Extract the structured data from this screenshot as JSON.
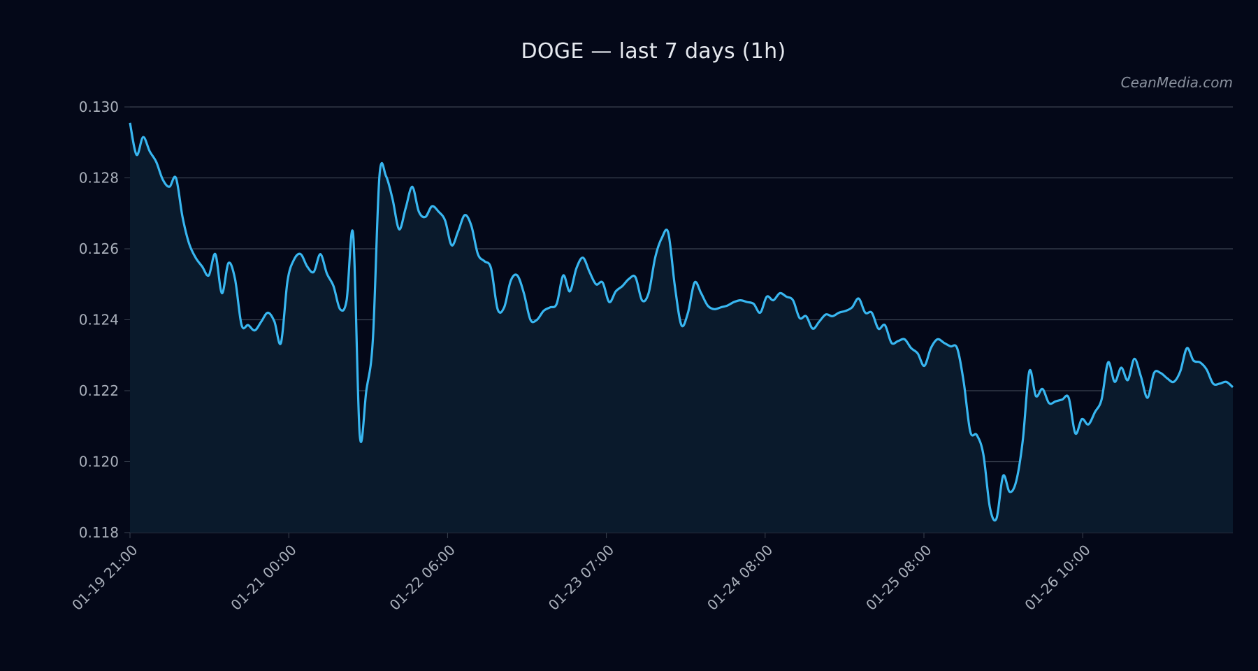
{
  "header": {
    "title": "DOGE — last 7 days (1h)",
    "watermark": "CeanMedia.com"
  },
  "colors": {
    "background": "#040818",
    "line": "#38b6f0",
    "area_fill": "#0a1a2c",
    "grid": "#3a4250",
    "tick_text": "#aab0bb",
    "title_text": "#e6e9ef"
  },
  "chart_data": {
    "type": "area",
    "title": "DOGE — last 7 days (1h)",
    "xlabel": "",
    "ylabel": "",
    "ylim": [
      0.118,
      0.13
    ],
    "grid": true,
    "legend": "none",
    "yticks": [
      "0.118",
      "0.120",
      "0.122",
      "0.124",
      "0.126",
      "0.128",
      "0.130"
    ],
    "xticks": [
      "01-19 21:00",
      "01-21 00:00",
      "01-22 06:00",
      "01-23 07:00",
      "01-24 08:00",
      "01-25 08:00",
      "01-26 10:00"
    ],
    "series": [
      {
        "name": "DOGE",
        "x_index": [
          0,
          1,
          2,
          3,
          4,
          5,
          6,
          7,
          8,
          9,
          10,
          11,
          12,
          13,
          14,
          15,
          16,
          17,
          18,
          19,
          20,
          21,
          22,
          23,
          24,
          25,
          26,
          27,
          28,
          29,
          30,
          31,
          32,
          33,
          34,
          35,
          36,
          37,
          38,
          39,
          40,
          41,
          42,
          43,
          44,
          45,
          46,
          47,
          48,
          49,
          50,
          51,
          52,
          53,
          54,
          55,
          56,
          57,
          58,
          59,
          60,
          61,
          62,
          63,
          64,
          65,
          66,
          67,
          68,
          69,
          70,
          71,
          72,
          73,
          74,
          75,
          76,
          77,
          78,
          79,
          80,
          81,
          82,
          83,
          84,
          85,
          86,
          87,
          88,
          89,
          90,
          91,
          92,
          93,
          94,
          95,
          96,
          97,
          98,
          99,
          100,
          101,
          102,
          103,
          104,
          105,
          106,
          107,
          108,
          109,
          110,
          111,
          112,
          113,
          114,
          115,
          116,
          117,
          118,
          119,
          120,
          121,
          122,
          123,
          124,
          125,
          126,
          127,
          128,
          129,
          130,
          131,
          132,
          133,
          134,
          135,
          136,
          137,
          138,
          139,
          140,
          141,
          142,
          143,
          144,
          145,
          146,
          147,
          148,
          149,
          150,
          151,
          152,
          153,
          154,
          155,
          156,
          157,
          158,
          159,
          160,
          161,
          162,
          163,
          164,
          165,
          166,
          167
        ],
        "values": [
          0.12955,
          0.12865,
          0.12915,
          0.12875,
          0.12845,
          0.12795,
          0.12775,
          0.128,
          0.1269,
          0.12615,
          0.12575,
          0.1255,
          0.12525,
          0.12585,
          0.12475,
          0.1256,
          0.12515,
          0.12385,
          0.12385,
          0.1237,
          0.12395,
          0.1242,
          0.12395,
          0.12335,
          0.1251,
          0.1257,
          0.12585,
          0.1255,
          0.12535,
          0.12585,
          0.1253,
          0.12495,
          0.1243,
          0.12455,
          0.1264,
          0.12075,
          0.122,
          0.12345,
          0.12805,
          0.12805,
          0.1274,
          0.12655,
          0.12715,
          0.12775,
          0.12705,
          0.1269,
          0.1272,
          0.12705,
          0.1268,
          0.1261,
          0.1265,
          0.12695,
          0.12665,
          0.12585,
          0.12565,
          0.12545,
          0.1243,
          0.12435,
          0.1251,
          0.12525,
          0.12475,
          0.124,
          0.124,
          0.12425,
          0.12435,
          0.12445,
          0.12525,
          0.1248,
          0.12545,
          0.12575,
          0.12535,
          0.125,
          0.12505,
          0.1245,
          0.1248,
          0.12495,
          0.12515,
          0.1252,
          0.12455,
          0.12475,
          0.12575,
          0.1263,
          0.12645,
          0.12495,
          0.12385,
          0.1242,
          0.12505,
          0.12475,
          0.1244,
          0.1243,
          0.12435,
          0.1244,
          0.1245,
          0.12455,
          0.1245,
          0.12445,
          0.1242,
          0.12465,
          0.12455,
          0.12475,
          0.12465,
          0.12455,
          0.12405,
          0.1241,
          0.12375,
          0.12395,
          0.12415,
          0.1241,
          0.1242,
          0.12425,
          0.12435,
          0.1246,
          0.1242,
          0.1242,
          0.12375,
          0.12385,
          0.12335,
          0.1234,
          0.12345,
          0.1232,
          0.12305,
          0.1227,
          0.1232,
          0.12345,
          0.12335,
          0.12325,
          0.1232,
          0.12225,
          0.12085,
          0.12075,
          0.1202,
          0.1187,
          0.1184,
          0.1196,
          0.11915,
          0.11945,
          0.1206,
          0.12255,
          0.12185,
          0.12205,
          0.12165,
          0.1217,
          0.12175,
          0.1218,
          0.1208,
          0.1212,
          0.12105,
          0.1214,
          0.12175,
          0.1228,
          0.12225,
          0.12265,
          0.1223,
          0.1229,
          0.1224,
          0.1218,
          0.1225,
          0.1225,
          0.12235,
          0.12225,
          0.12255,
          0.1232,
          0.12285,
          0.1228,
          0.1226,
          0.1222,
          0.1222,
          0.12225,
          0.1221
        ]
      }
    ]
  }
}
